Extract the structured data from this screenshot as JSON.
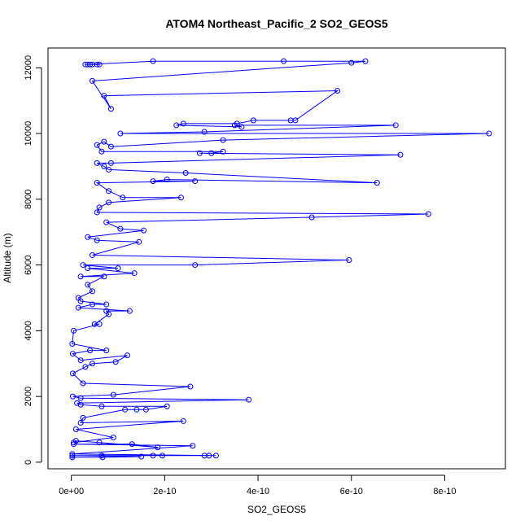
{
  "chart_data": {
    "type": "line",
    "title": "ATOM4 Northeast_Pacific_2 SO2_GEOS5",
    "xlabel": "SO2_GEOS5",
    "ylabel": "Altitude (m)",
    "xlim": [
      -5e-11,
      9.3e-10
    ],
    "ylim": [
      -200,
      12600
    ],
    "xticks": [
      0,
      2e-10,
      4e-10,
      6e-10,
      8e-10
    ],
    "xtick_labels": [
      "0e+00",
      "2e-10",
      "4e-10",
      "6e-10",
      "8e-10"
    ],
    "yticks": [
      0,
      2000,
      4000,
      6000,
      8000,
      10000,
      12000
    ],
    "ytick_labels": [
      "0",
      "2000",
      "4000",
      "6000",
      "8000",
      "10000",
      "12000"
    ],
    "grid": false,
    "series": [
      {
        "color": "#0000ff",
        "marker": "open-circle",
        "points": [
          [
            2e-12,
            150
          ],
          [
            6.7e-11,
            150
          ],
          [
            1.5e-10,
            170
          ],
          [
            2e-12,
            200
          ],
          [
            6.5e-11,
            200
          ],
          [
            1.75e-10,
            200
          ],
          [
            1.95e-10,
            200
          ],
          [
            2.85e-10,
            200
          ],
          [
            2.95e-10,
            200
          ],
          [
            3.1e-10,
            200
          ],
          [
            2e-12,
            250
          ],
          [
            2.6e-10,
            500
          ],
          [
            5e-12,
            550
          ],
          [
            1.3e-10,
            550
          ],
          [
            1.85e-10,
            450
          ],
          [
            6e-11,
            600
          ],
          [
            1e-11,
            650
          ],
          [
            5e-12,
            600
          ],
          [
            9e-11,
            750
          ],
          [
            1e-11,
            1000
          ],
          [
            2.4e-10,
            1250
          ],
          [
            2e-11,
            1200
          ],
          [
            2.5e-11,
            1350
          ],
          [
            1.15e-10,
            1600
          ],
          [
            1.4e-10,
            1600
          ],
          [
            1.6e-10,
            1600
          ],
          [
            2.05e-10,
            1700
          ],
          [
            6.5e-11,
            1700
          ],
          [
            2e-11,
            1750
          ],
          [
            1.2e-11,
            1800
          ],
          [
            3.8e-10,
            1900
          ],
          [
            2e-11,
            1950
          ],
          [
            3e-12,
            2000
          ],
          [
            9e-11,
            2050
          ],
          [
            2.55e-10,
            2300
          ],
          [
            2.5e-11,
            2400
          ],
          [
            3e-12,
            2700
          ],
          [
            3e-11,
            2900
          ],
          [
            4.5e-11,
            3000
          ],
          [
            9.5e-11,
            3050
          ],
          [
            1.2e-10,
            3250
          ],
          [
            2e-11,
            3100
          ],
          [
            3e-12,
            3300
          ],
          [
            4e-11,
            3400
          ],
          [
            7.5e-11,
            3400
          ],
          [
            2e-12,
            3600
          ],
          [
            5e-12,
            4000
          ],
          [
            6e-11,
            4200
          ],
          [
            5e-11,
            4200
          ],
          [
            8e-11,
            4500
          ],
          [
            7.5e-11,
            4600
          ],
          [
            1.25e-10,
            4600
          ],
          [
            1.5e-11,
            4700
          ],
          [
            4.5e-11,
            4800
          ],
          [
            7.5e-11,
            4800
          ],
          [
            2e-11,
            4900
          ],
          [
            1.5e-11,
            5000
          ],
          [
            4.5e-11,
            5200
          ],
          [
            3.5e-11,
            5400
          ],
          [
            7e-11,
            5650
          ],
          [
            2e-11,
            5650
          ],
          [
            1.35e-10,
            5750
          ],
          [
            3.5e-11,
            5900
          ],
          [
            1e-10,
            5900
          ],
          [
            2.5e-11,
            6000
          ],
          [
            2.65e-10,
            6000
          ],
          [
            5.95e-10,
            6150
          ],
          [
            4.5e-11,
            6300
          ],
          [
            1.45e-10,
            6700
          ],
          [
            5.5e-11,
            6750
          ],
          [
            3.5e-11,
            6850
          ],
          [
            1.55e-10,
            7050
          ],
          [
            1.05e-10,
            7100
          ],
          [
            7.5e-11,
            7300
          ],
          [
            5.15e-10,
            7450
          ],
          [
            7.65e-10,
            7550
          ],
          [
            5.5e-11,
            7600
          ],
          [
            6e-11,
            7750
          ],
          [
            8e-11,
            7900
          ],
          [
            2.35e-10,
            8050
          ],
          [
            1.1e-10,
            8050
          ],
          [
            8e-11,
            8250
          ],
          [
            5.5e-11,
            8500
          ],
          [
            2.65e-10,
            8550
          ],
          [
            1.75e-10,
            8550
          ],
          [
            2.05e-10,
            8600
          ],
          [
            6.55e-10,
            8500
          ],
          [
            2.45e-10,
            8800
          ],
          [
            8e-11,
            8900
          ],
          [
            7e-11,
            9000
          ],
          [
            5.5e-11,
            9100
          ],
          [
            8.5e-11,
            9100
          ],
          [
            7.05e-10,
            9350
          ],
          [
            2.75e-10,
            9400
          ],
          [
            3e-10,
            9400
          ],
          [
            3.25e-10,
            9450
          ],
          [
            6.5e-11,
            9450
          ],
          [
            5.5e-11,
            9650
          ],
          [
            7e-11,
            9750
          ],
          [
            8.5e-11,
            9600
          ],
          [
            3.25e-10,
            9800
          ],
          [
            8.95e-10,
            10000
          ],
          [
            1.05e-10,
            10000
          ],
          [
            2.85e-10,
            10050
          ],
          [
            6.95e-10,
            10250
          ],
          [
            3.5e-10,
            10250
          ],
          [
            3.65e-10,
            10200
          ],
          [
            2.25e-10,
            10250
          ],
          [
            2.4e-10,
            10300
          ],
          [
            3.55e-10,
            10300
          ],
          [
            3.9e-10,
            10400
          ],
          [
            4.7e-10,
            10400
          ],
          [
            4.8e-10,
            10400
          ],
          [
            5.7e-10,
            11300
          ],
          [
            7e-11,
            11150
          ],
          [
            8.5e-11,
            10750
          ],
          [
            4.5e-11,
            11600
          ],
          [
            6e-10,
            12150
          ],
          [
            6.3e-10,
            12200
          ],
          [
            4.55e-10,
            12200
          ],
          [
            1.75e-10,
            12200
          ],
          [
            3.5e-11,
            12100
          ],
          [
            4e-11,
            12100
          ],
          [
            4.5e-11,
            12100
          ],
          [
            5.5e-11,
            12100
          ],
          [
            3e-11,
            12100
          ],
          [
            6e-11,
            12100
          ]
        ]
      }
    ]
  }
}
